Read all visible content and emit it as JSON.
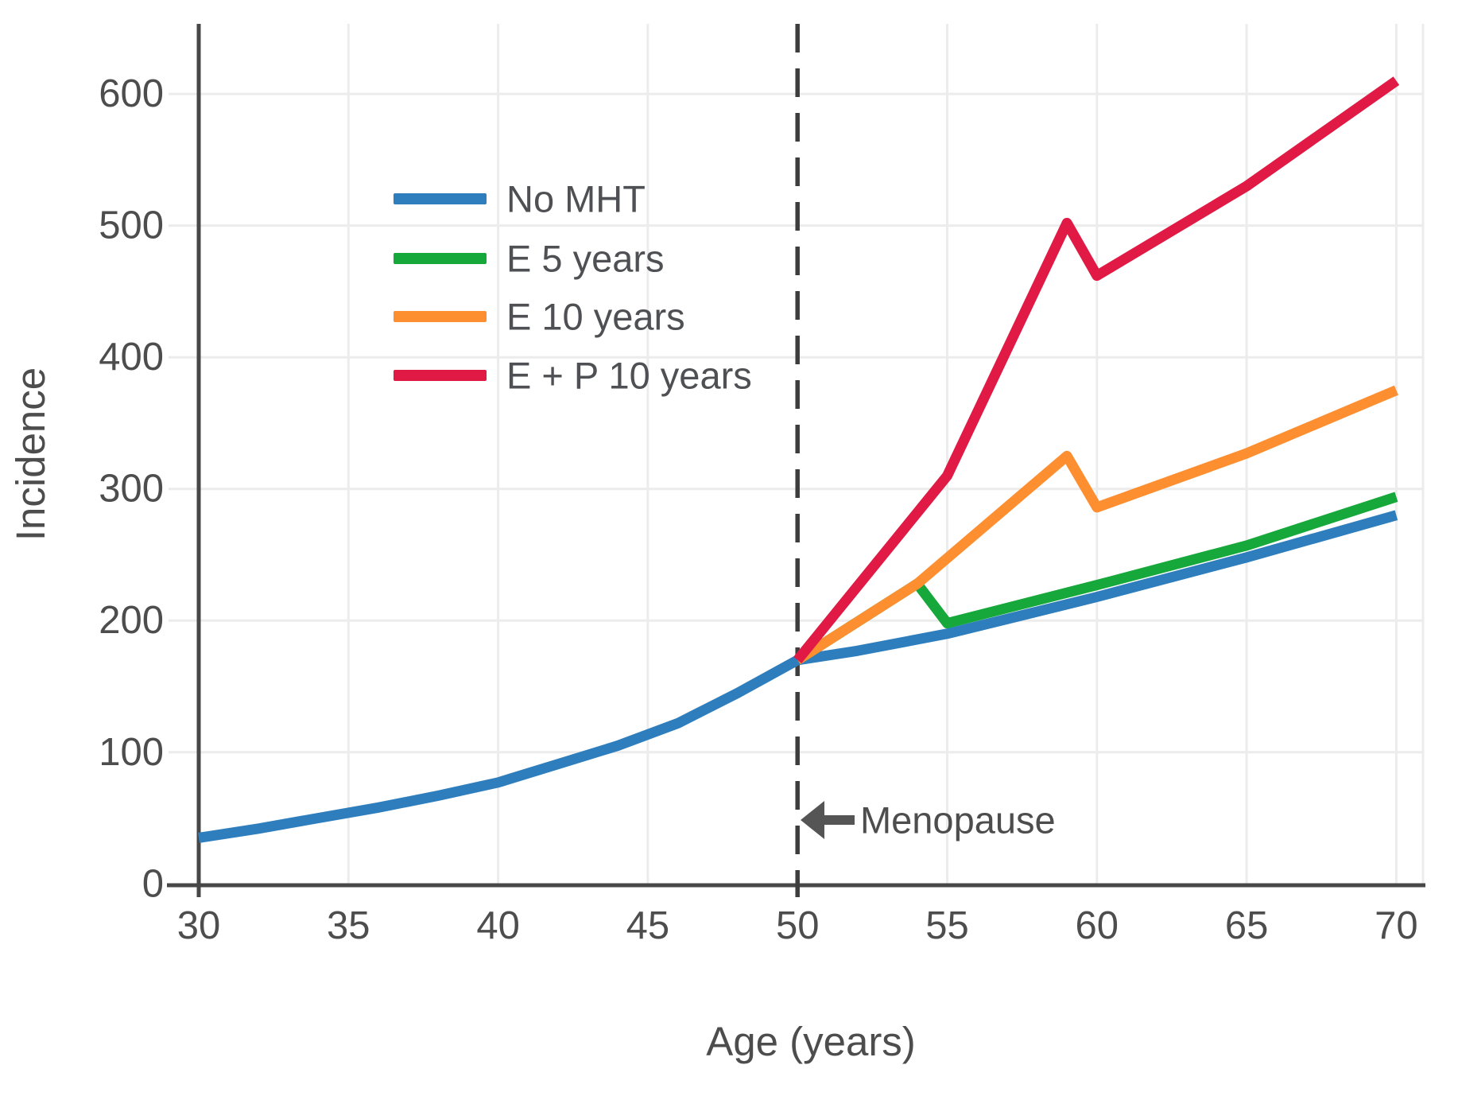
{
  "chart_data": {
    "type": "line",
    "title": "",
    "xlabel": "Age (years)",
    "ylabel": "Incidence",
    "x_ticks": [
      30,
      35,
      40,
      45,
      50,
      55,
      60,
      65,
      70
    ],
    "y_ticks": [
      0,
      100,
      200,
      300,
      400,
      500,
      600
    ],
    "xlim": [
      30,
      70.9
    ],
    "ylim": [
      0,
      653
    ],
    "grid": true,
    "legend_position": "upper-left-inside",
    "vline": {
      "x": 50,
      "style": "dashed",
      "color": "#3d3d3d"
    },
    "annotation": {
      "text": "Menopause",
      "arrow": "left",
      "x": 50.2,
      "y": 48
    },
    "series": [
      {
        "name": "No MHT",
        "color": "#2e7ebd",
        "points": [
          [
            30,
            35
          ],
          [
            32,
            42
          ],
          [
            34,
            50
          ],
          [
            36,
            58
          ],
          [
            38,
            67
          ],
          [
            40,
            77
          ],
          [
            42,
            91
          ],
          [
            44,
            105
          ],
          [
            46,
            122
          ],
          [
            48,
            145
          ],
          [
            50,
            170
          ],
          [
            52,
            177
          ],
          [
            55,
            190
          ],
          [
            60,
            218
          ],
          [
            65,
            248
          ],
          [
            70,
            280
          ]
        ]
      },
      {
        "name": "E 5 years",
        "color": "#16a83a",
        "points": [
          [
            50,
            170
          ],
          [
            54,
            228
          ],
          [
            55,
            198
          ],
          [
            60,
            227
          ],
          [
            65,
            257
          ],
          [
            70,
            294
          ]
        ]
      },
      {
        "name": "E 10 years",
        "color": "#fd8f31",
        "points": [
          [
            50,
            170
          ],
          [
            54,
            228
          ],
          [
            59,
            325
          ],
          [
            60,
            286
          ],
          [
            65,
            327
          ],
          [
            70,
            375
          ]
        ]
      },
      {
        "name": "E + P 10 years",
        "color": "#e01a45",
        "points": [
          [
            50,
            170
          ],
          [
            55,
            310
          ],
          [
            59,
            502
          ],
          [
            60,
            462
          ],
          [
            65,
            530
          ],
          [
            70,
            610
          ]
        ]
      }
    ],
    "colors": {
      "axis": "#474747",
      "text": "#4d4d4d",
      "grid": "#ececec"
    }
  }
}
